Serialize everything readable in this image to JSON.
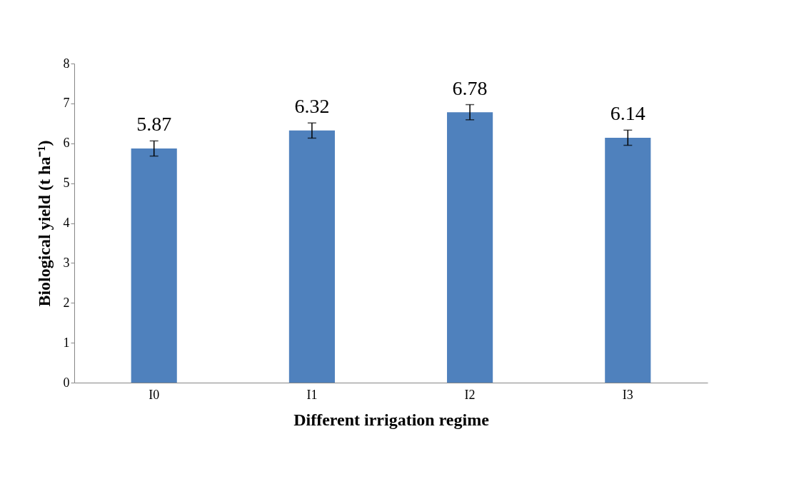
{
  "chart_data": {
    "type": "bar",
    "xlabel": "Different irrigation regime",
    "ylabel": "Biological yield (t ha⁻¹)",
    "categories": [
      "I0",
      "I1",
      "I2",
      "I3"
    ],
    "values": [
      5.87,
      6.32,
      6.78,
      6.14
    ],
    "errors": [
      0.19,
      0.19,
      0.19,
      0.19
    ],
    "color": "#4f81bd",
    "ylim": [
      0,
      8
    ],
    "yticks": [
      0,
      1,
      2,
      3,
      4,
      5,
      6,
      7,
      8
    ],
    "grid": false,
    "data_labels": true
  }
}
